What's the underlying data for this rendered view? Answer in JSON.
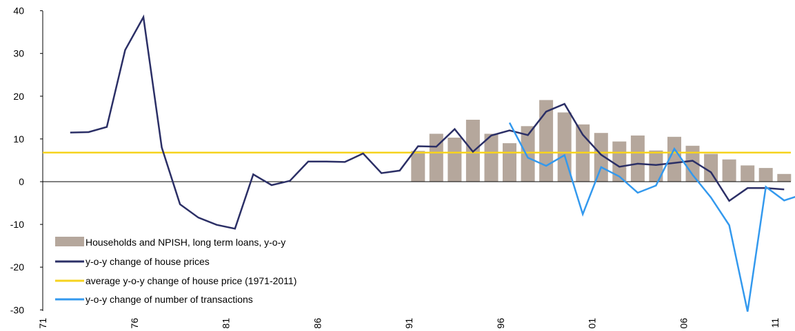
{
  "chart_data": {
    "type": "line",
    "title": "",
    "xlabel": "",
    "ylabel": "",
    "ylim": [
      -30,
      40
    ],
    "yticks": [
      40,
      30,
      20,
      10,
      0,
      -10,
      -20,
      -30
    ],
    "xlim": [
      1971,
      2012
    ],
    "xtick_labels": [
      {
        "x": 1971,
        "label": "71"
      },
      {
        "x": 1976,
        "label": "76"
      },
      {
        "x": 1981,
        "label": "81"
      },
      {
        "x": 1986,
        "label": "86"
      },
      {
        "x": 1991,
        "label": "91"
      },
      {
        "x": 1996,
        "label": "96"
      },
      {
        "x": 2001,
        "label": "01"
      },
      {
        "x": 2006,
        "label": "06"
      },
      {
        "x": 2011,
        "label": "11"
      }
    ],
    "grid": false,
    "legend_position": "bottom-left",
    "series": [
      {
        "name": "Households and NPISH, long term loans, y-o-y",
        "kind": "bar",
        "color": "#b5a79c",
        "x": [
          1991,
          1992,
          1993,
          1994,
          1995,
          1996,
          1997,
          1998,
          1999,
          2000,
          2001,
          2002,
          2003,
          2004,
          2005,
          2006,
          2007,
          2008,
          2009,
          2010,
          2011
        ],
        "values": [
          7.2,
          11.2,
          10.3,
          14.5,
          11.2,
          9.0,
          13.0,
          19.1,
          16.2,
          13.4,
          11.4,
          9.4,
          10.8,
          7.3,
          10.5,
          8.4,
          6.5,
          5.2,
          3.8,
          3.2,
          1.8
        ]
      },
      {
        "name": "y-o-y change of house prices",
        "kind": "line",
        "color": "#2b2f66",
        "x": [
          1972.5,
          1973.5,
          1974.5,
          1975.5,
          1976.5,
          1977.5,
          1978.5,
          1979.5,
          1980.5,
          1981.5,
          1982.5,
          1983.5,
          1984.5,
          1985.5,
          1986.5,
          1987.5,
          1988.5,
          1989.5,
          1990.5,
          1991.5,
          1992.5,
          1993.5,
          1994.5,
          1995.5,
          1996.5,
          1997.5,
          1998.5,
          1999.5,
          2000.5,
          2001.5,
          2002.5,
          2003.5,
          2004.5,
          2005.5,
          2006.5,
          2007.5,
          2008.5,
          2009.5,
          2010.5,
          2011.5
        ],
        "values": [
          11.5,
          11.6,
          12.8,
          30.8,
          38.5,
          8.0,
          -5.3,
          -8.4,
          -10.1,
          -11.0,
          1.7,
          -0.8,
          0.2,
          4.7,
          4.7,
          4.6,
          6.6,
          2.0,
          2.6,
          8.3,
          8.2,
          12.3,
          7.0,
          10.8,
          12.0,
          10.9,
          16.4,
          18.2,
          11.0,
          6.3,
          3.5,
          4.2,
          3.9,
          4.4,
          4.9,
          2.2,
          -4.5,
          -1.5,
          -1.5,
          -1.8
        ]
      },
      {
        "name": "average y-o-y change of house price (1971-2011)",
        "kind": "hline",
        "color": "#f6d31e",
        "value": 6.8
      },
      {
        "name": "y-o-y change of number of transactions",
        "kind": "line",
        "color": "#3399ee",
        "x": [
          1996.5,
          1997.5,
          1998.5,
          1999.5,
          2000.5,
          2001.5,
          2002.5,
          2003.5,
          2004.5,
          2005.5,
          2006.5,
          2007.5,
          2008.5,
          2009.5,
          2010.5,
          2011.5,
          2012.5
        ],
        "values": [
          13.8,
          5.6,
          3.7,
          6.2,
          -7.6,
          3.4,
          1.2,
          -2.6,
          -0.9,
          7.7,
          1.6,
          -3.7,
          -10.2,
          -30.4,
          -1.2,
          -4.4,
          -3.0
        ]
      }
    ]
  }
}
